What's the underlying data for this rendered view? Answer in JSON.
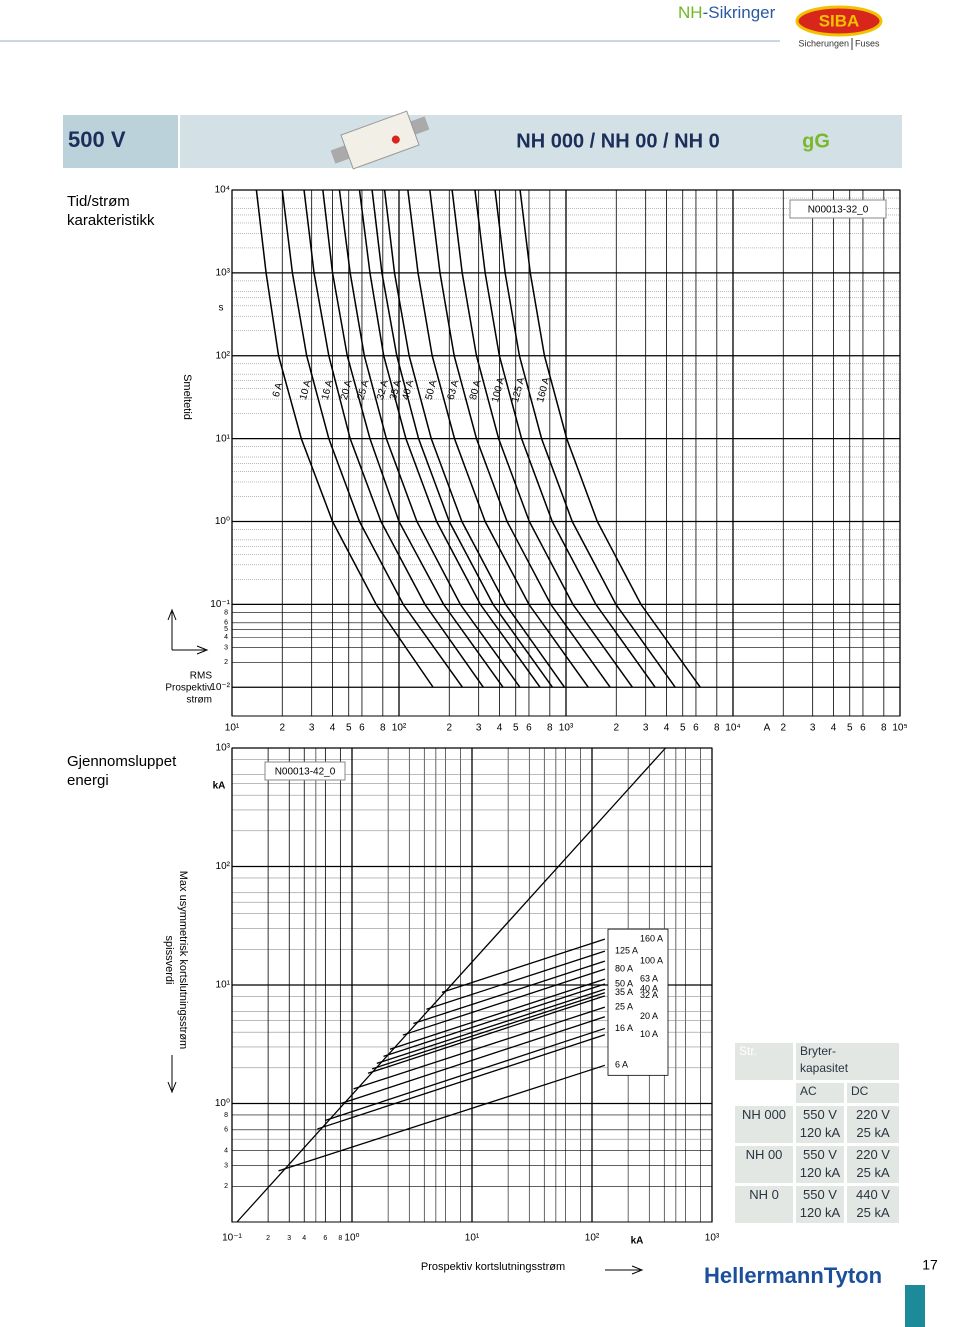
{
  "header": {
    "title_prefix": "NH",
    "title_suffix": "-Sikringer",
    "logo": "SIBA",
    "logo_sub_left": "Sicherungen",
    "logo_sub_right": "Fuses"
  },
  "banner": {
    "voltage": "500 V",
    "title": "NH 000 / NH 00 / NH 0",
    "class": "gG"
  },
  "chart_data": [
    {
      "type": "line",
      "title": [
        "Tid/strøm",
        "karakteristikk"
      ],
      "code": "N00013-32_0",
      "y_unit": "s",
      "y_label": "Smeltetid",
      "x_unit": "A",
      "x_label": [
        "RMS",
        "Prospektiv",
        "strøm"
      ],
      "log_x": true,
      "log_y": true,
      "grid": true,
      "color": "#000000",
      "xlim": [
        10,
        100000
      ],
      "ylim": [
        0.0045,
        10000
      ],
      "xticks": [
        {
          "value": 10,
          "label": "10¹"
        },
        {
          "value": 20,
          "label": "2"
        },
        {
          "value": 30,
          "label": "3"
        },
        {
          "value": 40,
          "label": "4"
        },
        {
          "value": 50,
          "label": "5"
        },
        {
          "value": 60,
          "label": "6"
        },
        {
          "value": 80,
          "label": "8"
        },
        {
          "value": 100,
          "label": "10²"
        },
        {
          "value": 200,
          "label": "2"
        },
        {
          "value": 300,
          "label": "3"
        },
        {
          "value": 400,
          "label": "4"
        },
        {
          "value": 500,
          "label": "5"
        },
        {
          "value": 600,
          "label": "6"
        },
        {
          "value": 800,
          "label": "8"
        },
        {
          "value": 1000,
          "label": "10³"
        },
        {
          "value": 2000,
          "label": "2"
        },
        {
          "value": 3000,
          "label": "3"
        },
        {
          "value": 4000,
          "label": "4"
        },
        {
          "value": 5000,
          "label": "5"
        },
        {
          "value": 6000,
          "label": "6"
        },
        {
          "value": 8000,
          "label": "8"
        },
        {
          "value": 10000,
          "label": "10⁴"
        },
        {
          "value": 20000,
          "label": "2"
        },
        {
          "value": 30000,
          "label": "3"
        },
        {
          "value": 40000,
          "label": "4"
        },
        {
          "value": 50000,
          "label": "5"
        },
        {
          "value": 60000,
          "label": "6"
        },
        {
          "value": 80000,
          "label": "8"
        },
        {
          "value": 100000,
          "label": "10⁵"
        }
      ],
      "yticks": [
        {
          "value": 10000,
          "label": "10⁴"
        },
        {
          "value": 1000,
          "label": "10³"
        },
        {
          "value": 100,
          "label": "10²"
        },
        {
          "value": 10,
          "label": "10¹"
        },
        {
          "value": 1,
          "label": "10⁰"
        },
        {
          "value": 0.1,
          "label": "10⁻¹"
        },
        {
          "value": 0.08,
          "label": "8"
        },
        {
          "value": 0.06,
          "label": "6"
        },
        {
          "value": 0.05,
          "label": "5"
        },
        {
          "value": 0.04,
          "label": "4"
        },
        {
          "value": 0.03,
          "label": "3"
        },
        {
          "value": 0.02,
          "label": "2"
        },
        {
          "value": 0.01,
          "label": "10⁻²"
        }
      ],
      "yminor": [
        0.2,
        0.3,
        0.4,
        0.5,
        0.6,
        0.8,
        2,
        3,
        4,
        5,
        6,
        8,
        20,
        30,
        40,
        50,
        60,
        80,
        200,
        300,
        400,
        500,
        600,
        800,
        2000,
        3000,
        4000,
        5000,
        6000,
        8000
      ],
      "y": [
        10000,
        1000,
        100,
        10,
        1,
        0.1,
        0.01
      ],
      "series": [
        {
          "name": "6 A",
          "x": [
            14,
            16,
            19,
            26,
            40,
            73,
            160
          ]
        },
        {
          "name": "10 A",
          "x": [
            20,
            23,
            28,
            38,
            58,
            106,
            240
          ]
        },
        {
          "name": "16 A",
          "x": [
            27,
            31,
            38,
            51,
            78,
            143,
            320
          ]
        },
        {
          "name": "20 A",
          "x": [
            35,
            40,
            49,
            67,
            100,
            185,
            420
          ]
        },
        {
          "name": "25 A",
          "x": [
            44,
            51,
            62,
            84,
            128,
            233,
            530
          ]
        },
        {
          "name": "32 A",
          "x": [
            58,
            67,
            81,
            110,
            168,
            307,
            700
          ]
        },
        {
          "name": "35 A",
          "x": [
            69,
            79,
            97,
            131,
            200,
            366,
            830
          ]
        },
        {
          "name": "40 A",
          "x": [
            82,
            94,
            115,
            156,
            238,
            435,
            980
          ]
        },
        {
          "name": "50 A",
          "x": [
            113,
            130,
            158,
            215,
            328,
            600,
            1360
          ]
        },
        {
          "name": "63 A",
          "x": [
            153,
            176,
            214,
            291,
            444,
            811,
            1840
          ]
        },
        {
          "name": "80 A",
          "x": [
            208,
            239,
            291,
            395,
            603,
            1100,
            2500
          ]
        },
        {
          "name": "100 A",
          "x": [
            285,
            328,
            399,
            542,
            827,
            1510,
            3420
          ]
        },
        {
          "name": "125 A",
          "x": [
            376,
            432,
            526,
            714,
            1090,
            1990,
            4510
          ]
        },
        {
          "name": "160 A",
          "x": [
            531,
            611,
            743,
            1010,
            1540,
            2810,
            6370
          ]
        }
      ]
    },
    {
      "type": "line",
      "title": [
        "Gjennomsluppet",
        "energi"
      ],
      "code": "N00013-42_0",
      "y_unit": "kA",
      "y_label": [
        "Max usymmetrisk kortslutningsstrøm",
        "spissverdi"
      ],
      "x_unit": "kA",
      "x_label": "Prospektiv kortslutningsstrøm",
      "log_x": true,
      "log_y": true,
      "grid": true,
      "color": "#000000",
      "xlim": [
        0.1,
        1000
      ],
      "ylim": [
        0.1,
        1000
      ],
      "xticks": [
        {
          "value": 0.1,
          "label": "10⁻¹"
        },
        {
          "value": 0.2,
          "label": "2"
        },
        {
          "value": 0.3,
          "label": "3"
        },
        {
          "value": 0.4,
          "label": "4"
        },
        {
          "value": 0.6,
          "label": "6"
        },
        {
          "value": 0.8,
          "label": "8"
        },
        {
          "value": 1,
          "label": "10⁰"
        },
        {
          "value": 10,
          "label": "10¹"
        },
        {
          "value": 100,
          "label": "10²"
        },
        {
          "value": 1000,
          "label": "10³"
        }
      ],
      "xminor": [
        0.5,
        2,
        3,
        4,
        5,
        6,
        8,
        20,
        30,
        40,
        50,
        60,
        80,
        200,
        300,
        400,
        500,
        600,
        800
      ],
      "yticks": [
        {
          "value": 1000,
          "label": "10³"
        },
        {
          "value": 100,
          "label": "10²"
        },
        {
          "value": 10,
          "label": "10¹"
        },
        {
          "value": 1,
          "label": "10⁰"
        },
        {
          "value": 0.8,
          "label": "8"
        },
        {
          "value": 0.6,
          "label": "6"
        },
        {
          "value": 0.4,
          "label": "4"
        },
        {
          "value": 0.3,
          "label": "3"
        },
        {
          "value": 0.2,
          "label": "2"
        }
      ],
      "yminor": [
        0.5,
        2,
        3,
        4,
        5,
        6,
        8,
        20,
        30,
        40,
        50,
        60,
        80,
        200,
        300,
        400,
        500,
        600,
        800
      ],
      "series": [
        {
          "x": [
            0.11,
            410
          ],
          "values": [
            0.1,
            1000
          ]
        },
        {
          "name": "6 A",
          "x": [
            0.244,
            128
          ],
          "values": [
            0.27,
            2.1
          ]
        },
        {
          "name": "10 A",
          "x": [
            0.515,
            128
          ],
          "values": [
            0.61,
            3.8
          ]
        },
        {
          "name": "16 A",
          "x": [
            0.6,
            128
          ],
          "values": [
            0.72,
            4.3
          ]
        },
        {
          "name": "20 A",
          "x": [
            0.81,
            128
          ],
          "values": [
            1.0,
            5.4
          ]
        },
        {
          "name": "25 A",
          "x": [
            1.03,
            128
          ],
          "values": [
            1.33,
            6.5
          ]
        },
        {
          "name": "32 A",
          "x": [
            1.36,
            128
          ],
          "values": [
            1.8,
            8.1
          ]
        },
        {
          "name": "35 A",
          "x": [
            1.47,
            128
          ],
          "values": [
            1.96,
            8.6
          ]
        },
        {
          "name": "40 A",
          "x": [
            1.61,
            128
          ],
          "values": [
            2.18,
            9.2
          ]
        },
        {
          "name": "50 A",
          "x": [
            1.83,
            128
          ],
          "values": [
            2.5,
            10.2
          ]
        },
        {
          "name": "63 A",
          "x": [
            2.07,
            128
          ],
          "values": [
            2.87,
            11.2
          ]
        },
        {
          "name": "80 A",
          "x": [
            2.65,
            128
          ],
          "values": [
            3.78,
            13.6
          ]
        },
        {
          "name": "100 A",
          "x": [
            3.25,
            128
          ],
          "values": [
            4.73,
            15.9
          ]
        },
        {
          "name": "125 A",
          "x": [
            4.17,
            128
          ],
          "values": [
            6.24,
            19.3
          ]
        },
        {
          "name": "160 A",
          "x": [
            5.61,
            128
          ],
          "values": [
            8.67,
            24.4
          ]
        }
      ]
    }
  ],
  "table": {
    "col_size": "Str.",
    "col_capacity": [
      "Bryter-",
      "kapasitet"
    ],
    "col_ac": "AC",
    "col_dc": "DC",
    "rows": [
      [
        "NH 000",
        "550 V",
        "120 kA",
        "220 V",
        "25 kA"
      ],
      [
        "NH 00",
        "550 V",
        "120 kA",
        "220 V",
        "25 kA"
      ],
      [
        "NH 0",
        "550 V",
        "120 kA",
        "440 V",
        "25 kA"
      ]
    ]
  },
  "footer": {
    "brand": "HellermannTyton",
    "page": "17"
  }
}
